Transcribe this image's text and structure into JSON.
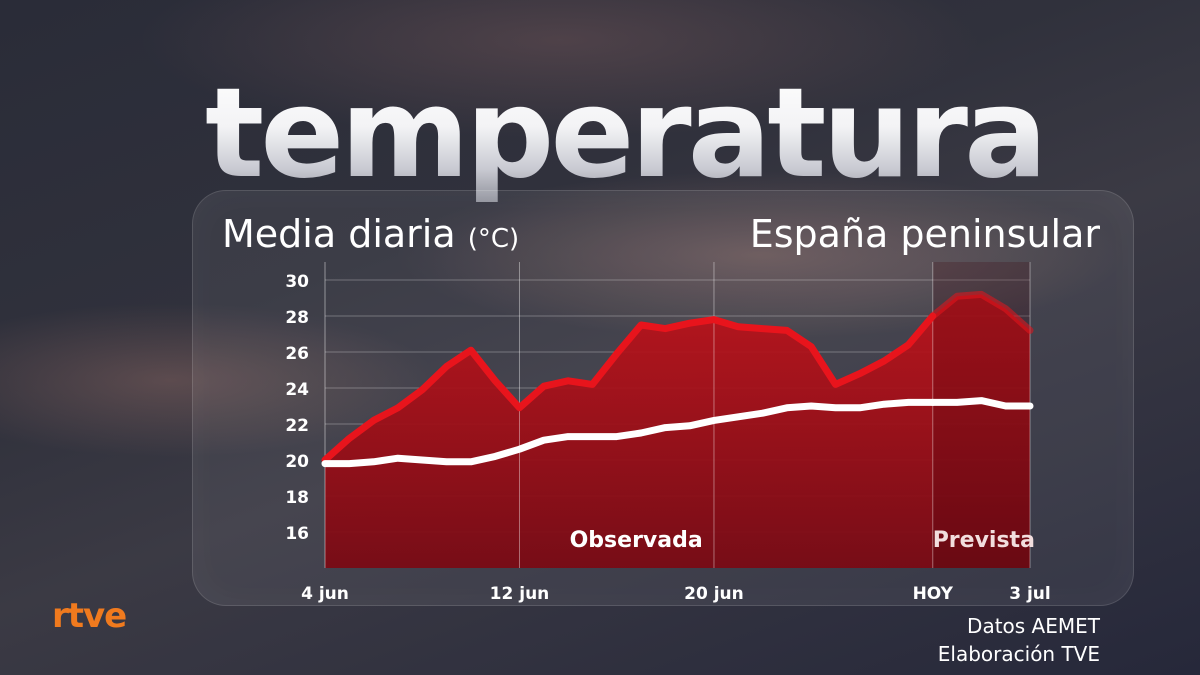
{
  "title": "temperatura",
  "subtitle": {
    "main": "Media diaria",
    "unit": "(°C)"
  },
  "region": "España peninsular",
  "logo": "rtve",
  "credits": {
    "line1": "Datos AEMET",
    "line2": "Elaboración TVE"
  },
  "chart_data": {
    "type": "line",
    "x_start_date": "2025-06-04",
    "x_ticks": [
      {
        "day": 0,
        "label": "4 jun"
      },
      {
        "day": 8,
        "label": "12 jun"
      },
      {
        "day": 16,
        "label": "20 jun"
      },
      {
        "day": 25,
        "label": "HOY"
      },
      {
        "day": 29,
        "label": "3 jul"
      }
    ],
    "ylim": [
      14,
      31
    ],
    "y_ticks": [
      16,
      18,
      20,
      22,
      24,
      26,
      28,
      30
    ],
    "grid": true,
    "observed_until_day": 25,
    "period_labels": {
      "observed": "Observada",
      "forecast": "Prevista"
    },
    "series": [
      {
        "color": "#e8141c",
        "values": [
          20.0,
          21.2,
          22.2,
          22.9,
          23.9,
          25.2,
          26.1,
          24.4,
          22.9,
          24.1,
          24.4,
          24.2,
          25.9,
          27.5,
          27.3,
          27.6,
          27.8,
          27.4,
          27.3,
          27.2,
          26.3,
          24.2,
          24.8,
          25.5,
          26.4,
          28.0,
          29.1,
          29.2,
          28.4,
          27.2
        ]
      },
      {
        "color": "#ffffff",
        "values": [
          19.8,
          19.8,
          19.9,
          20.1,
          20.0,
          19.9,
          19.9,
          20.2,
          20.6,
          21.1,
          21.3,
          21.3,
          21.3,
          21.5,
          21.8,
          21.9,
          22.2,
          22.4,
          22.6,
          22.9,
          23.0,
          22.9,
          22.9,
          23.1,
          23.2,
          23.2,
          23.2,
          23.3,
          23.0,
          23.0
        ]
      }
    ]
  }
}
